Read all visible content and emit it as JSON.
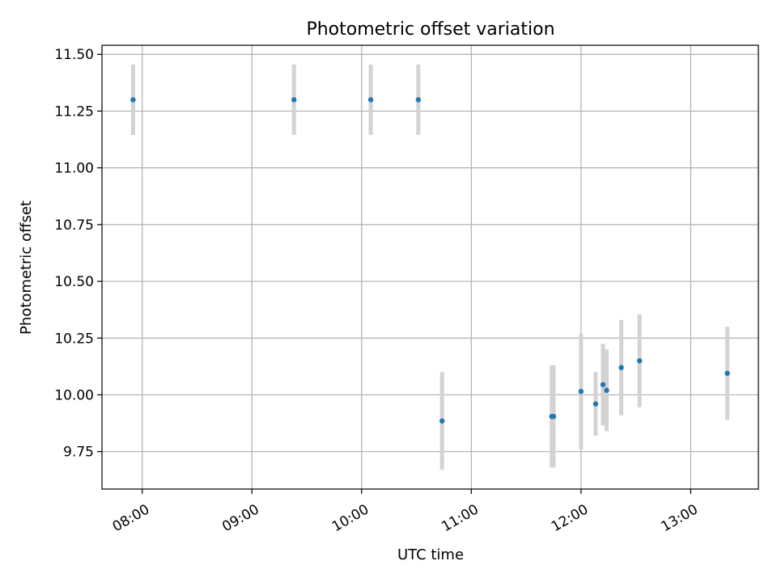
{
  "chart_data": {
    "type": "scatter",
    "title": "Photometric offset variation",
    "xlabel": "UTC time",
    "ylabel": "Photometric offset",
    "grid": true,
    "xlim": [
      "07:38",
      "13:37"
    ],
    "ylim": [
      9.585,
      11.54
    ],
    "x_ticks": [
      "08:00",
      "09:00",
      "10:00",
      "11:00",
      "12:00",
      "13:00"
    ],
    "y_ticks": [
      "9.75",
      "10.00",
      "10.25",
      "10.50",
      "10.75",
      "11.00",
      "11.25",
      "11.50"
    ],
    "series": [
      {
        "marker_color": "#1f77b4",
        "errorbar_color": "#d3d3d3",
        "points": [
          {
            "x": "07:55",
            "y": 11.3,
            "err": 0.155
          },
          {
            "x": "09:23",
            "y": 11.3,
            "err": 0.155
          },
          {
            "x": "10:05",
            "y": 11.3,
            "err": 0.155
          },
          {
            "x": "10:31",
            "y": 11.3,
            "err": 0.155
          },
          {
            "x": "10:44",
            "y": 9.885,
            "err": 0.215
          },
          {
            "x": "11:44",
            "y": 9.905,
            "err": 0.225
          },
          {
            "x": "11:45",
            "y": 9.905,
            "err": 0.225
          },
          {
            "x": "12:00",
            "y": 10.015,
            "err": 0.255
          },
          {
            "x": "12:08",
            "y": 9.96,
            "err": 0.14
          },
          {
            "x": "12:12",
            "y": 10.045,
            "err": 0.18
          },
          {
            "x": "12:14",
            "y": 10.02,
            "err": 0.18
          },
          {
            "x": "12:22",
            "y": 10.12,
            "err": 0.21
          },
          {
            "x": "12:32",
            "y": 10.15,
            "err": 0.205
          },
          {
            "x": "13:20",
            "y": 10.095,
            "err": 0.205
          }
        ]
      }
    ]
  }
}
